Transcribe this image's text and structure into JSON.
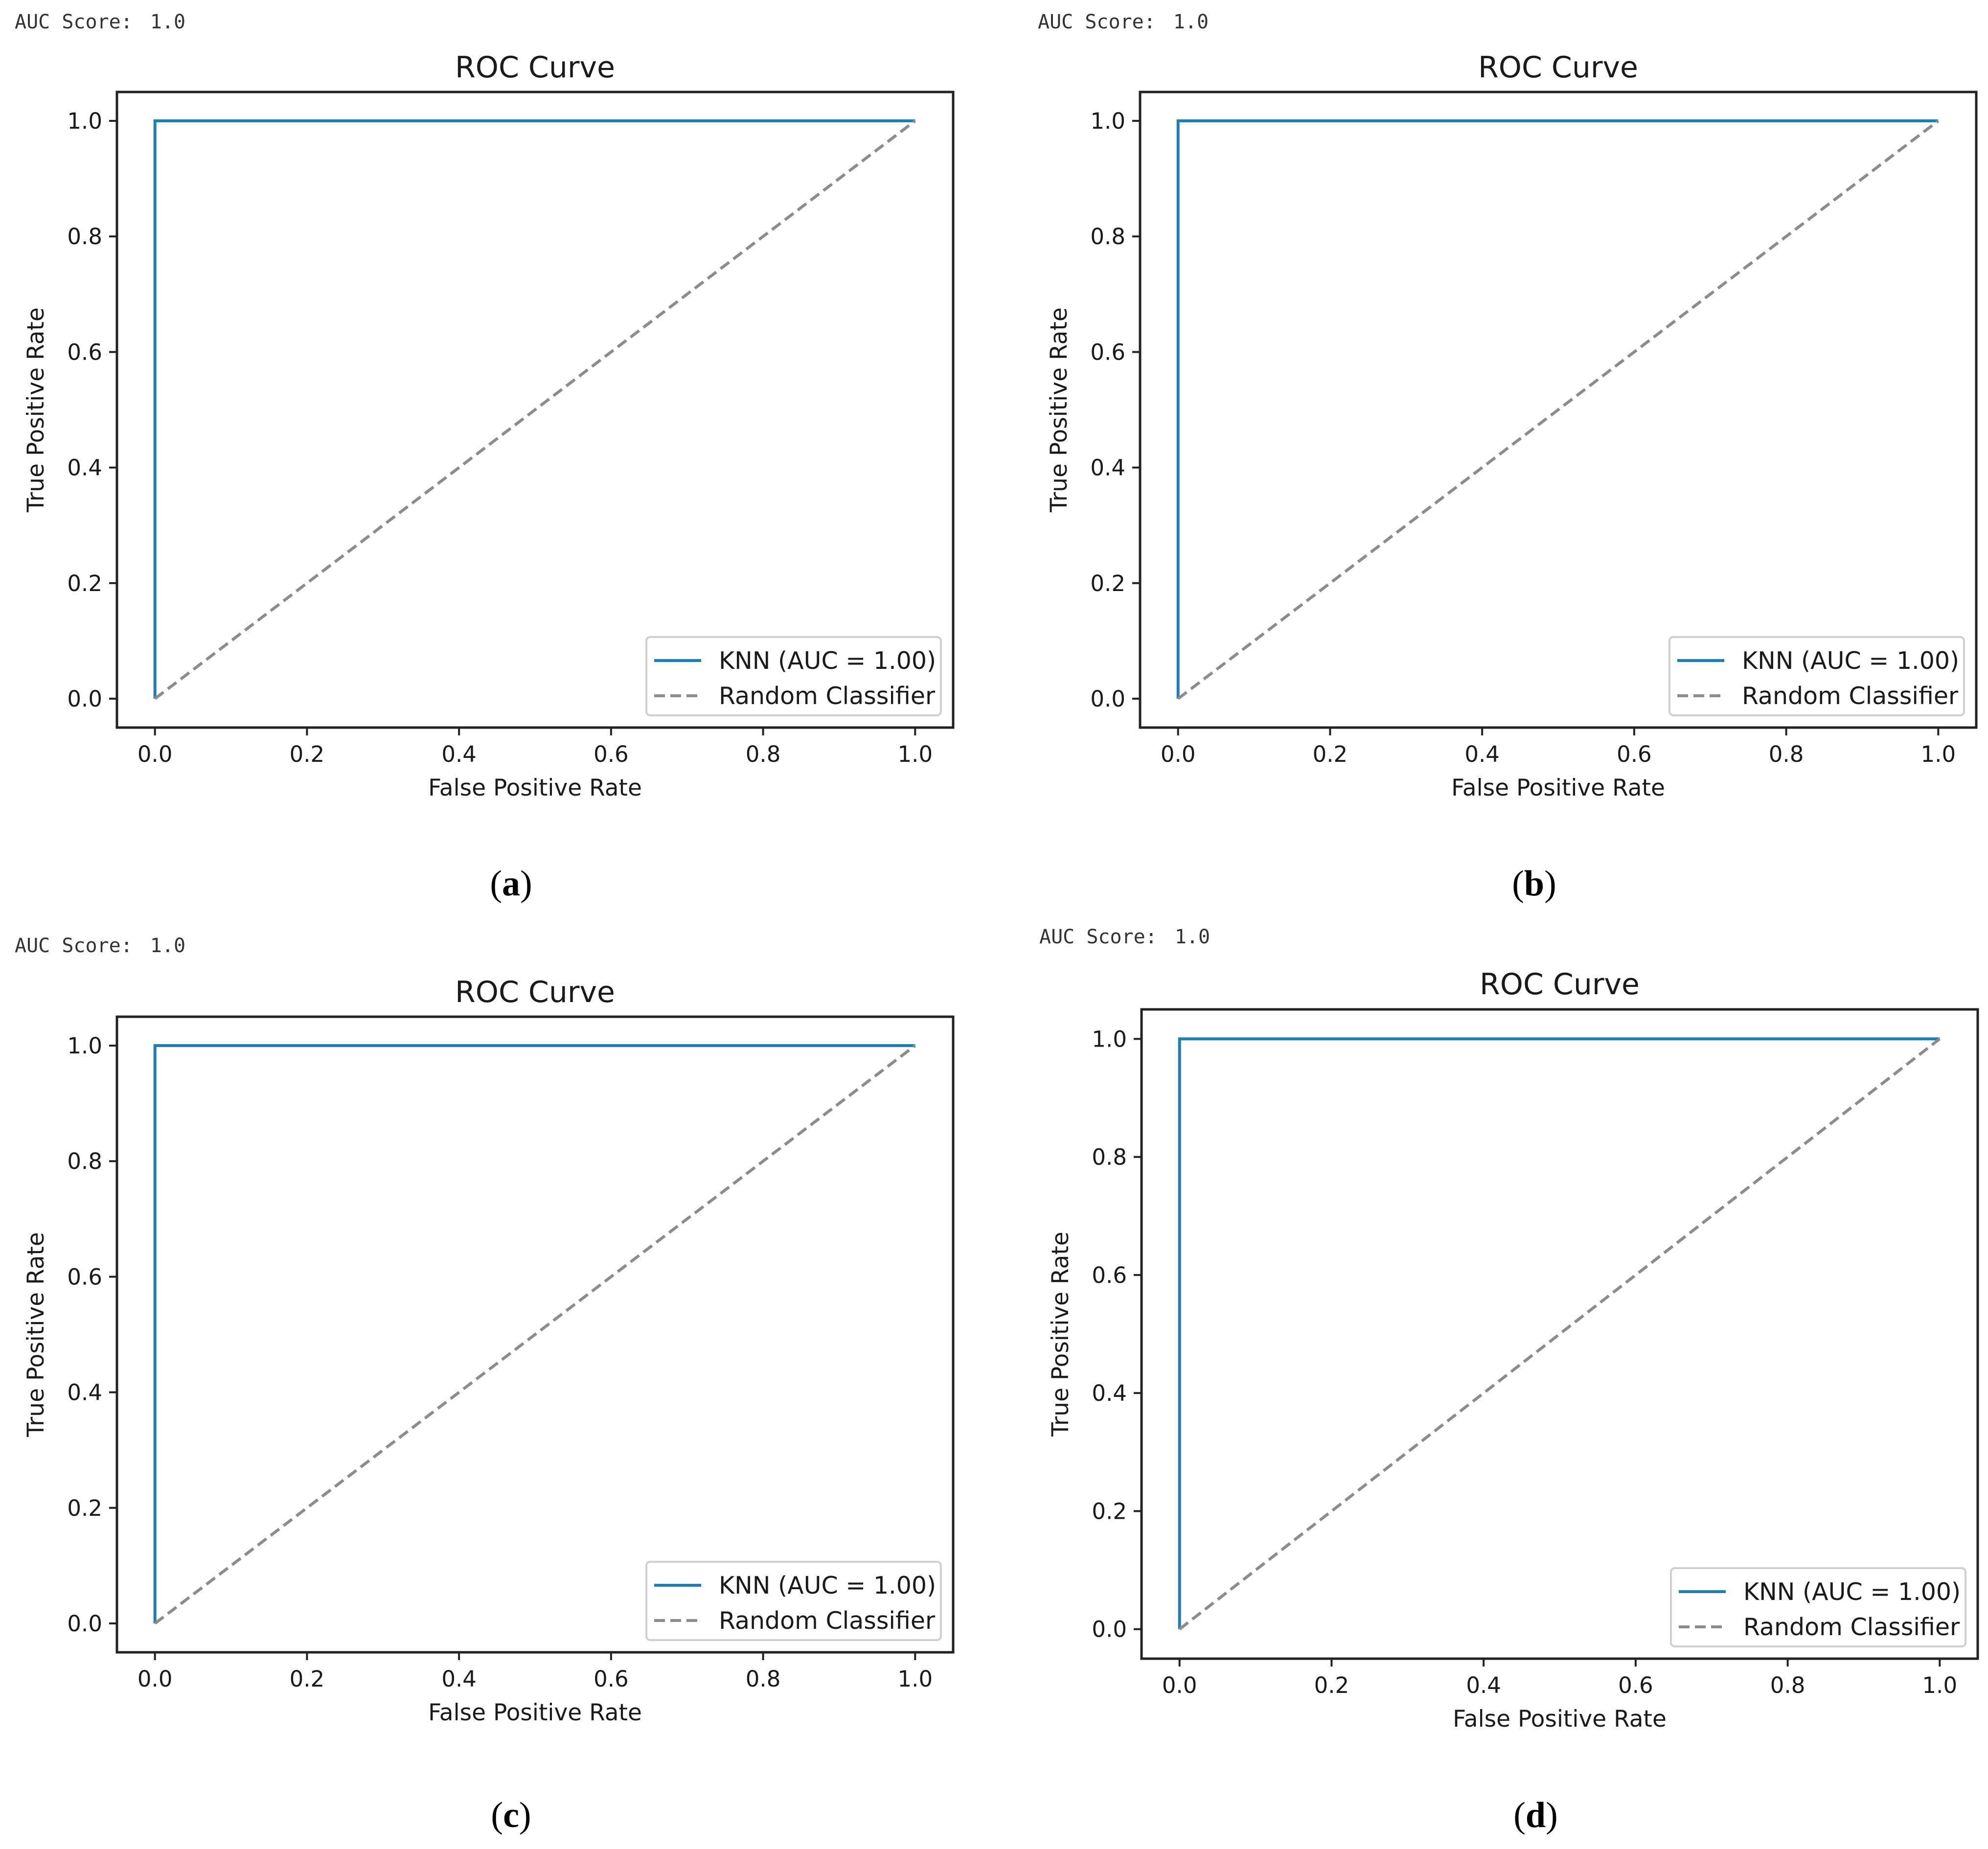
{
  "colors": {
    "model_line": "#1f7fb4",
    "baseline": "#8c8c8c"
  },
  "chart_data": [
    {
      "type": "line",
      "panel": "a",
      "caption_letter": "a",
      "auc_label": "AUC Score:",
      "auc_value": "1.0",
      "title": "ROC Curve",
      "xlabel": "False Positive Rate",
      "ylabel": "True Positive Rate",
      "xlim": [
        -0.05,
        1.05
      ],
      "ylim": [
        -0.05,
        1.05
      ],
      "xticks": [
        "0.0",
        "0.2",
        "0.4",
        "0.6",
        "0.8",
        "1.0"
      ],
      "yticks": [
        "0.0",
        "0.2",
        "0.4",
        "0.6",
        "0.8",
        "1.0"
      ],
      "legend_position": "lower-right",
      "series": [
        {
          "name": "KNN (AUC = 1.00)",
          "style": "solid",
          "x": [
            0,
            0,
            1
          ],
          "y": [
            0,
            1,
            1
          ]
        },
        {
          "name": "Random Classifier",
          "style": "dashed",
          "x": [
            0,
            1
          ],
          "y": [
            0,
            1
          ]
        }
      ]
    },
    {
      "type": "line",
      "panel": "b",
      "caption_letter": "b",
      "auc_label": "AUC Score:",
      "auc_value": "1.0",
      "title": "ROC Curve",
      "xlabel": "False Positive Rate",
      "ylabel": "True Positive Rate",
      "xlim": [
        -0.05,
        1.05
      ],
      "ylim": [
        -0.05,
        1.05
      ],
      "xticks": [
        "0.0",
        "0.2",
        "0.4",
        "0.6",
        "0.8",
        "1.0"
      ],
      "yticks": [
        "0.0",
        "0.2",
        "0.4",
        "0.6",
        "0.8",
        "1.0"
      ],
      "legend_position": "lower-right",
      "series": [
        {
          "name": "KNN (AUC = 1.00)",
          "style": "solid",
          "x": [
            0,
            0,
            1
          ],
          "y": [
            0,
            1,
            1
          ]
        },
        {
          "name": "Random Classifier",
          "style": "dashed",
          "x": [
            0,
            1
          ],
          "y": [
            0,
            1
          ]
        }
      ]
    },
    {
      "type": "line",
      "panel": "c",
      "caption_letter": "c",
      "auc_label": "AUC Score:",
      "auc_value": "1.0",
      "title": "ROC Curve",
      "xlabel": "False Positive Rate",
      "ylabel": "True Positive Rate",
      "xlim": [
        -0.05,
        1.05
      ],
      "ylim": [
        -0.05,
        1.05
      ],
      "xticks": [
        "0.0",
        "0.2",
        "0.4",
        "0.6",
        "0.8",
        "1.0"
      ],
      "yticks": [
        "0.0",
        "0.2",
        "0.4",
        "0.6",
        "0.8",
        "1.0"
      ],
      "legend_position": "lower-right",
      "series": [
        {
          "name": "KNN (AUC = 1.00)",
          "style": "solid",
          "x": [
            0,
            0,
            1
          ],
          "y": [
            0,
            1,
            1
          ]
        },
        {
          "name": "Random Classifier",
          "style": "dashed",
          "x": [
            0,
            1
          ],
          "y": [
            0,
            1
          ]
        }
      ]
    },
    {
      "type": "line",
      "panel": "d",
      "caption_letter": "d",
      "auc_label": "AUC Score:",
      "auc_value": "1.0",
      "title": "ROC Curve",
      "xlabel": "False Positive Rate",
      "ylabel": "True Positive Rate",
      "xlim": [
        -0.05,
        1.05
      ],
      "ylim": [
        -0.05,
        1.05
      ],
      "xticks": [
        "0.0",
        "0.2",
        "0.4",
        "0.6",
        "0.8",
        "1.0"
      ],
      "yticks": [
        "0.0",
        "0.2",
        "0.4",
        "0.6",
        "0.8",
        "1.0"
      ],
      "legend_position": "lower-right",
      "series": [
        {
          "name": "KNN (AUC = 1.00)",
          "style": "solid",
          "x": [
            0,
            0,
            1
          ],
          "y": [
            0,
            1,
            1
          ]
        },
        {
          "name": "Random Classifier",
          "style": "dashed",
          "x": [
            0,
            1
          ],
          "y": [
            0,
            1
          ]
        }
      ]
    }
  ]
}
